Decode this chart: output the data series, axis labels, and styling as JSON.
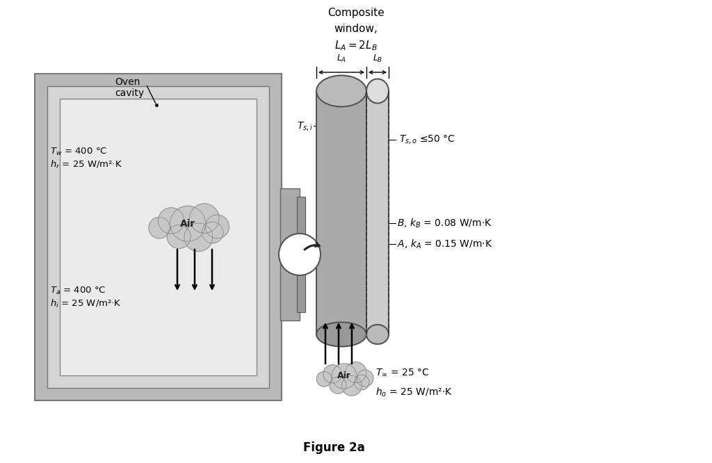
{
  "title": "Figure 2a",
  "composite_window_title_line1": "Composite",
  "composite_window_title_line2": "window,",
  "composite_window_title_line3": "$L_A = 2L_B$",
  "oven_label": "Oven\ncavity",
  "tw_label": "$T_w$ = 400 °C\n$h_r$ = 25 W/m²·K",
  "ta_label": "$T_a$ = 400 °C\n$h_i$ = 25 W/m²·K",
  "tsi_label": "$T_{s,i}$",
  "tso_label": "$T_{s,o}$ ≤50 °C",
  "B_label": "$B$, $k_B$ = 0.08 W/m·K",
  "A_label": "$A$, $k_A$ = 0.15 W/m·K",
  "air_label": "Air",
  "tinf_label": "$T_\\infty$ = 25 °C",
  "ho_label": "$h_o$ = 25 W/m²·K",
  "LA_label": "$L_A$",
  "LB_label": "$L_B$",
  "bg_color": "#ffffff",
  "oven_outer_color": "#bbbbbb",
  "oven_mid_color": "#d0d0d0",
  "oven_inner_color": "#e8e8e8",
  "slot_color": "#aaaaaa",
  "winA_color": "#aaaaaa",
  "winB_color": "#cccccc",
  "cloud_color": "#c8c8c8",
  "cloud_edge_color": "#888888"
}
